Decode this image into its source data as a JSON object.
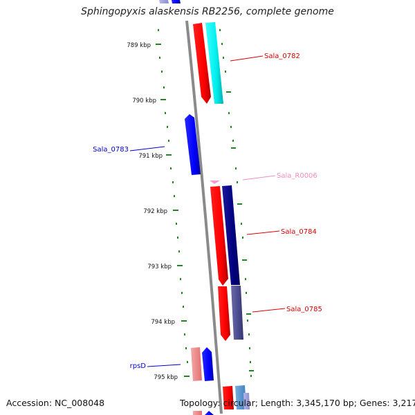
{
  "header": {
    "title": "Sphingopyxis alaskensis RB2256, complete genome"
  },
  "footer": {
    "accession": "Accession: NC_008048",
    "topology": "Topology: circular; Length: 3,345,170 bp; Genes: 3,217"
  },
  "ruler": {
    "ticks": [
      "789 kbp",
      "790 kbp",
      "791 kbp",
      "792 kbp",
      "793 kbp",
      "794 kbp",
      "795 kbp"
    ]
  },
  "features": [
    {
      "label": "Sala_0782",
      "color": "#d80000"
    },
    {
      "label": "Sala_0783",
      "color": "#0000cc"
    },
    {
      "label": "Sala_R0006",
      "color": "#f08cc0"
    },
    {
      "label": "Sala_0784",
      "color": "#d80000"
    },
    {
      "label": "Sala_0785",
      "color": "#d80000"
    },
    {
      "label": "rpsD",
      "color": "#0000cc"
    }
  ],
  "colors": {
    "backbone": "#8a8a8a",
    "ruler_marks": "#1a8a1a",
    "cds_forward": "#ff0000",
    "cds_reverse": "#0000ff",
    "cyan_track": "#00e5e5",
    "navy_track": "#000080",
    "rrna": "#ff99cc"
  }
}
